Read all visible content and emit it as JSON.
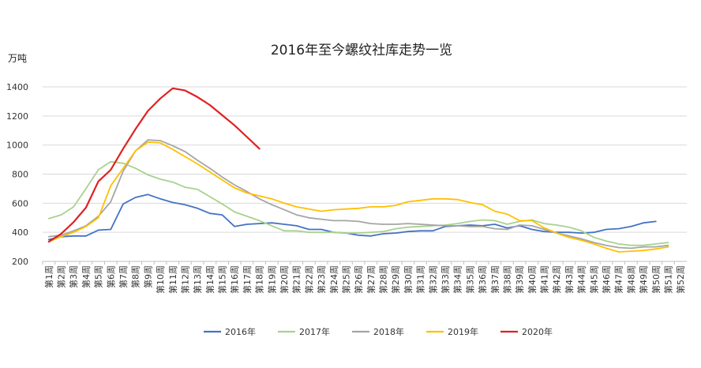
{
  "chart_data": {
    "type": "line",
    "title": "2016年至今螺纹社库走势一览",
    "ylabel": "万吨",
    "xlabel": "",
    "ylim": [
      200,
      1400
    ],
    "yticks": [
      200,
      400,
      600,
      800,
      1000,
      1200,
      1400
    ],
    "grid": true,
    "legend_position": "bottom",
    "categories": [
      "第1周",
      "第2周",
      "第3周",
      "第4周",
      "第5周",
      "第6周",
      "第7周",
      "第8周",
      "第9周",
      "第10周",
      "第11周",
      "第12周",
      "第13周",
      "第14周",
      "第15周",
      "第16周",
      "第17周",
      "第18周",
      "第19周",
      "第20周",
      "第21周",
      "第22周",
      "第23周",
      "第24周",
      "第25周",
      "第26周",
      "第27周",
      "第28周",
      "第29周",
      "第30周",
      "第31周",
      "第32周",
      "第33周",
      "第34周",
      "第35周",
      "第36周",
      "第37周",
      "第38周",
      "第39周",
      "第40周",
      "第41周",
      "第42周",
      "第43周",
      "第44周",
      "第45周",
      "第46周",
      "第47周",
      "第48周",
      "第49周",
      "第50周",
      "第51周",
      "第52周"
    ],
    "series": [
      {
        "name": "2016年",
        "color": "#4472c4",
        "values": [
          350,
          370,
          375,
          375,
          415,
          420,
          595,
          640,
          660,
          630,
          605,
          590,
          565,
          530,
          520,
          440,
          455,
          460,
          465,
          455,
          445,
          420,
          420,
          400,
          395,
          380,
          375,
          390,
          395,
          405,
          410,
          410,
          440,
          445,
          450,
          445,
          455,
          430,
          445,
          420,
          405,
          400,
          400,
          395,
          400,
          420,
          425,
          440,
          465,
          475,
          null,
          null
        ]
      },
      {
        "name": "2017年",
        "color": "#a9d18e",
        "values": [
          495,
          520,
          575,
          700,
          830,
          885,
          875,
          840,
          795,
          765,
          745,
          710,
          695,
          645,
          595,
          540,
          510,
          480,
          445,
          410,
          410,
          400,
          400,
          400,
          395,
          395,
          400,
          405,
          425,
          435,
          440,
          445,
          450,
          460,
          475,
          485,
          480,
          455,
          475,
          485,
          460,
          450,
          435,
          410,
          365,
          340,
          320,
          310,
          310,
          320,
          330,
          null
        ]
      },
      {
        "name": "2018年",
        "color": "#a5a5a5",
        "values": [
          370,
          380,
          410,
          445,
          510,
          610,
          820,
          960,
          1035,
          1030,
          995,
          955,
          895,
          840,
          780,
          725,
          680,
          630,
          590,
          555,
          520,
          500,
          490,
          480,
          480,
          475,
          460,
          455,
          455,
          460,
          455,
          450,
          445,
          445,
          440,
          440,
          425,
          420,
          450,
          445,
          420,
          395,
          375,
          355,
          330,
          310,
          295,
          290,
          300,
          300,
          310,
          null
        ]
      },
      {
        "name": "2019年",
        "color": "#ffc000",
        "values": [
          335,
          370,
          400,
          440,
          500,
          720,
          840,
          960,
          1020,
          1015,
          970,
          920,
          870,
          815,
          760,
          705,
          670,
          650,
          630,
          600,
          575,
          560,
          545,
          555,
          560,
          565,
          575,
          575,
          585,
          610,
          620,
          630,
          630,
          625,
          605,
          590,
          545,
          525,
          480,
          480,
          430,
          395,
          365,
          345,
          320,
          290,
          265,
          270,
          275,
          285,
          300,
          null
        ]
      },
      {
        "name": "2020年",
        "color": "#e02020",
        "values": [
          335,
          390,
          470,
          570,
          750,
          830,
          975,
          1110,
          1235,
          1320,
          1390,
          1375,
          1330,
          1275,
          1205,
          1135,
          1055,
          975,
          null,
          null,
          null,
          null,
          null,
          null,
          null,
          null,
          null,
          null,
          null,
          null,
          null,
          null,
          null,
          null,
          null,
          null,
          null,
          null,
          null,
          null,
          null,
          null,
          null,
          null,
          null,
          null,
          null,
          null,
          null,
          null,
          null,
          null
        ]
      }
    ]
  }
}
